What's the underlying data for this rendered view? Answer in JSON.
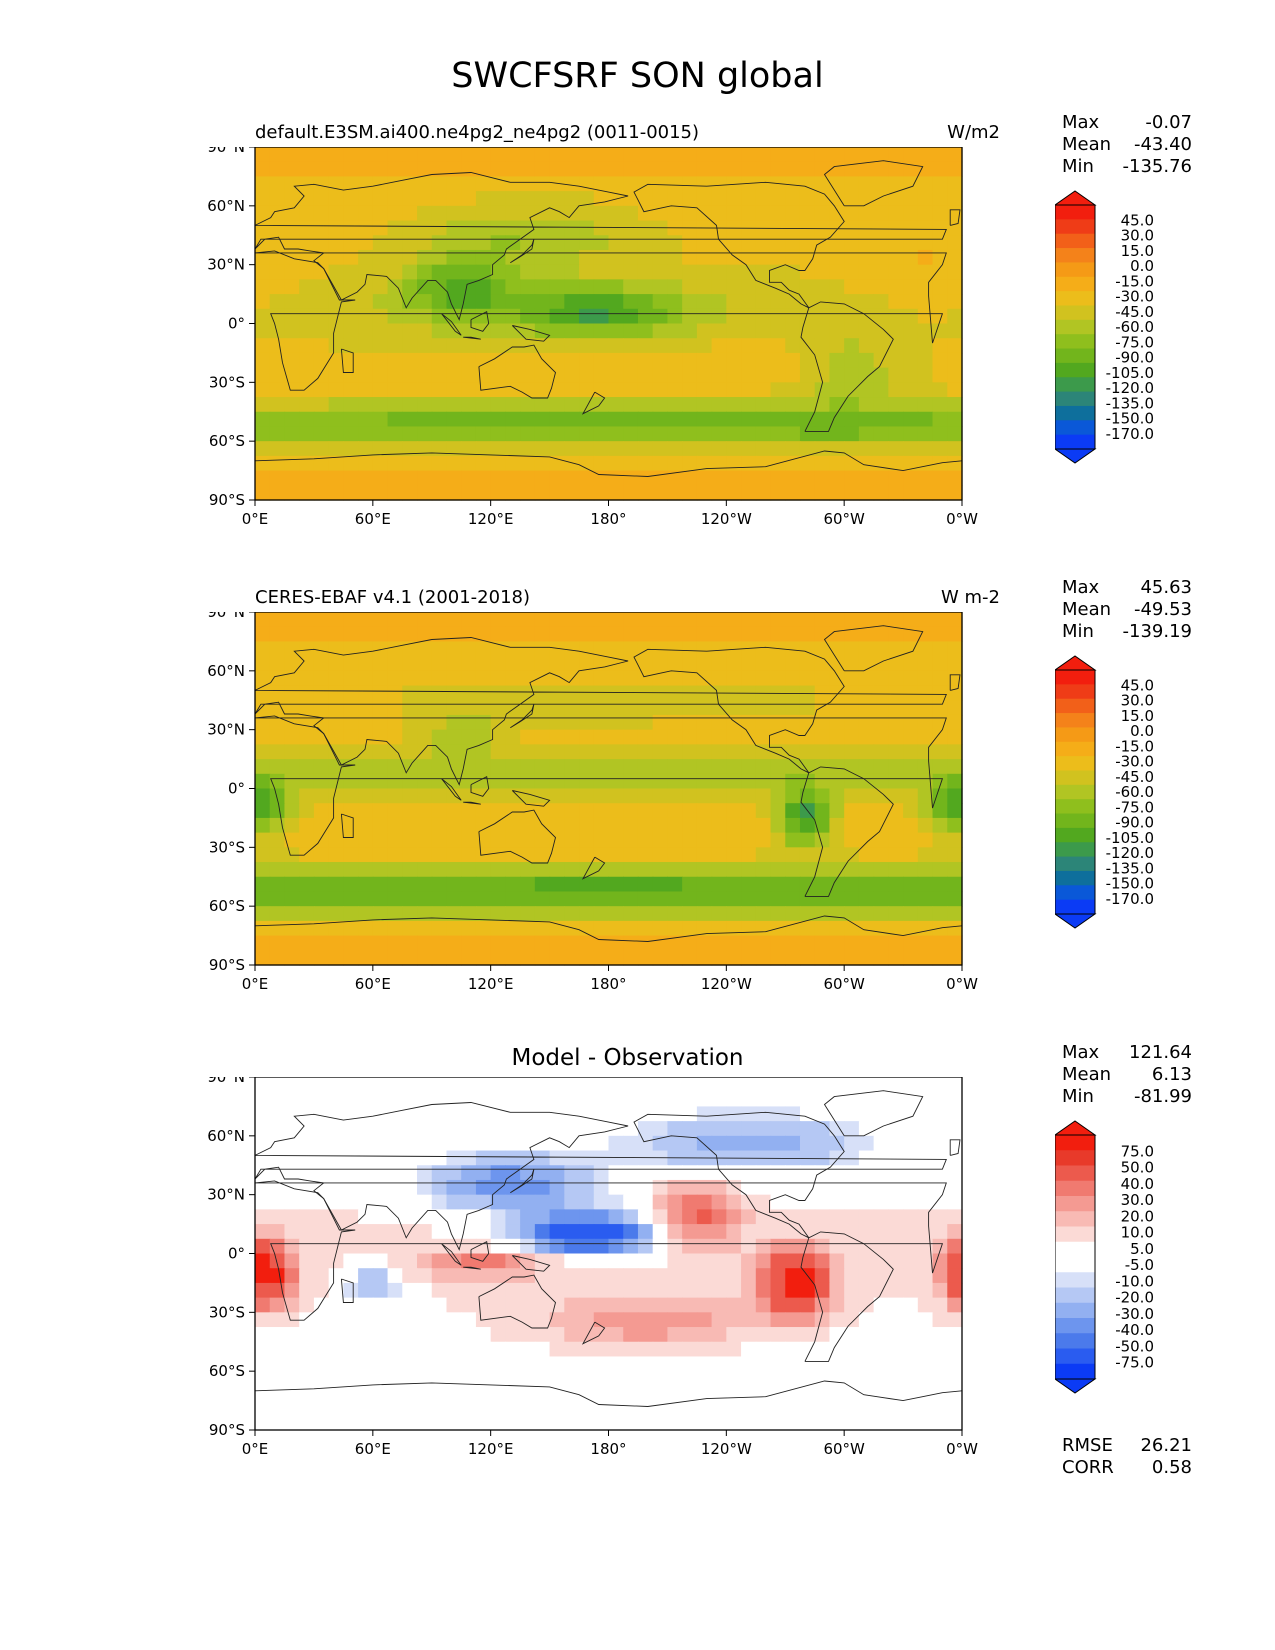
{
  "figure": {
    "title": "SWCFSRF SON global"
  },
  "axes": {
    "lat_ticks": [
      "90°N",
      "60°N",
      "30°N",
      "0°",
      "30°S",
      "60°S",
      "90°S"
    ],
    "lon_ticks": [
      "0°E",
      "60°E",
      "120°E",
      "180°",
      "120°W",
      "60°W",
      "0°W"
    ]
  },
  "colors": {
    "swcf_levels": [
      "#0b3bf5",
      "#0a58d8",
      "#0e6f9c",
      "#2c8578",
      "#3c9a4b",
      "#52a81f",
      "#72b51c",
      "#8fbf1d",
      "#b1c523",
      "#d1c21f",
      "#ecbd1b",
      "#f5ad18",
      "#f59a16",
      "#f4821a",
      "#f26019",
      "#ef3c17",
      "#f21e0e"
    ],
    "diff_levels": [
      "#0b3bf5",
      "#2a5cf0",
      "#4b7aeb",
      "#6d95ee",
      "#92b0f1",
      "#b5c8f4",
      "#d7e0f8",
      "#ffffff",
      "#ffffff",
      "#fbdad6",
      "#f8bab4",
      "#f49a92",
      "#f07a70",
      "#ec5a4d",
      "#e83a2a",
      "#f21e0e"
    ],
    "coastline": "#222222"
  },
  "panels": [
    {
      "id": "model",
      "left_title": "default.E3SM.ai400.ne4pg2_ne4pg2 (0011-0015)",
      "units": "W/m2",
      "center_title": "",
      "stats": [
        {
          "label": "Max",
          "value": "-0.07"
        },
        {
          "label": "Mean",
          "value": "-43.40"
        },
        {
          "label": "Min",
          "value": "-135.76"
        }
      ],
      "extra_stats": [],
      "colorbar_labels": [
        "45.0",
        "30.0",
        "15.0",
        "0.0",
        "-15.0",
        "-30.0",
        "-45.0",
        "-60.0",
        "-75.0",
        "-90.0",
        "-105.0",
        "-120.0",
        "-135.0",
        "-150.0",
        "-170.0"
      ]
    },
    {
      "id": "obs",
      "left_title": "CERES-EBAF v4.1 (2001-2018)",
      "units": "W m-2",
      "center_title": "",
      "stats": [
        {
          "label": "Max",
          "value": "45.63"
        },
        {
          "label": "Mean",
          "value": "-49.53"
        },
        {
          "label": "Min",
          "value": "-139.19"
        }
      ],
      "extra_stats": [],
      "colorbar_labels": [
        "45.0",
        "30.0",
        "15.0",
        "0.0",
        "-15.0",
        "-30.0",
        "-45.0",
        "-60.0",
        "-75.0",
        "-90.0",
        "-105.0",
        "-120.0",
        "-135.0",
        "-150.0",
        "-170.0"
      ]
    },
    {
      "id": "diff",
      "left_title": "",
      "units": "",
      "center_title": "Model - Observation",
      "stats": [
        {
          "label": "Max",
          "value": "121.64"
        },
        {
          "label": "Mean",
          "value": "6.13"
        },
        {
          "label": "Min",
          "value": "-81.99"
        }
      ],
      "extra_stats": [
        {
          "label": "RMSE",
          "value": "26.21"
        },
        {
          "label": "CORR",
          "value": "0.58"
        }
      ],
      "colorbar_labels": [
        "75.0",
        "50.0",
        "40.0",
        "30.0",
        "20.0",
        "10.0",
        "5.0",
        "-5.0",
        "-10.0",
        "-20.0",
        "-30.0",
        "-40.0",
        "-50.0",
        "-75.0"
      ]
    }
  ],
  "chart_data": [
    {
      "type": "heatmap",
      "title": "default.E3SM.ai400.ne4pg2_ne4pg2 (0011-0015)",
      "units": "W/m2",
      "xlim": [
        0,
        360
      ],
      "ylim": [
        -90,
        90
      ],
      "levels": [
        -170,
        -150,
        -135,
        -120,
        -105,
        -90,
        -75,
        -60,
        -45,
        -30,
        -15,
        0,
        15,
        30,
        45
      ],
      "stats": {
        "max": -0.07,
        "mean": -43.4,
        "min": -135.76
      },
      "features": [
        {
          "lon": 0,
          "lat": 90,
          "value": -20
        },
        {
          "lon": 0,
          "lat": -90,
          "value": -20
        },
        {
          "lon": 175,
          "lat": 5,
          "value": -120
        },
        {
          "lon": 105,
          "lat": 18,
          "value": -110
        },
        {
          "lon": 180,
          "lat": -53,
          "value": -90
        },
        {
          "lon": 30,
          "lat": -55,
          "value": -95
        },
        {
          "lon": 340,
          "lat": 20,
          "value": -15
        }
      ]
    },
    {
      "type": "heatmap",
      "title": "CERES-EBAF v4.1 (2001-2018)",
      "units": "W m-2",
      "xlim": [
        0,
        360
      ],
      "ylim": [
        -90,
        90
      ],
      "levels": [
        -170,
        -150,
        -135,
        -120,
        -105,
        -90,
        -75,
        -60,
        -45,
        -30,
        -15,
        0,
        15,
        30,
        45
      ],
      "stats": {
        "max": 45.63,
        "mean": -49.53,
        "min": -139.19
      },
      "features": [
        {
          "lon": 0,
          "lat": 90,
          "value": -20
        },
        {
          "lon": 0,
          "lat": -90,
          "value": -20
        },
        {
          "lon": 280,
          "lat": -15,
          "value": -135
        },
        {
          "lon": 180,
          "lat": -52,
          "value": -110
        },
        {
          "lon": 0,
          "lat": -10,
          "value": -110
        },
        {
          "lon": 105,
          "lat": 28,
          "value": -105
        }
      ]
    },
    {
      "type": "heatmap",
      "title": "Model - Observation",
      "xlim": [
        0,
        360
      ],
      "ylim": [
        -90,
        90
      ],
      "levels": [
        -75,
        -50,
        -40,
        -30,
        -20,
        -10,
        -5,
        5,
        10,
        20,
        30,
        40,
        50,
        75
      ],
      "stats": {
        "max": 121.64,
        "mean": 6.13,
        "min": -81.99,
        "rmse": 26.21,
        "corr": 0.58
      },
      "features": [
        {
          "lon": 170,
          "lat": 10,
          "value": -75
        },
        {
          "lon": 130,
          "lat": 35,
          "value": -40
        },
        {
          "lon": 275,
          "lat": -15,
          "value": 75
        },
        {
          "lon": 5,
          "lat": -10,
          "value": 75
        },
        {
          "lon": 225,
          "lat": 20,
          "value": 40
        },
        {
          "lon": 60,
          "lat": -15,
          "value": -40
        }
      ]
    }
  ]
}
